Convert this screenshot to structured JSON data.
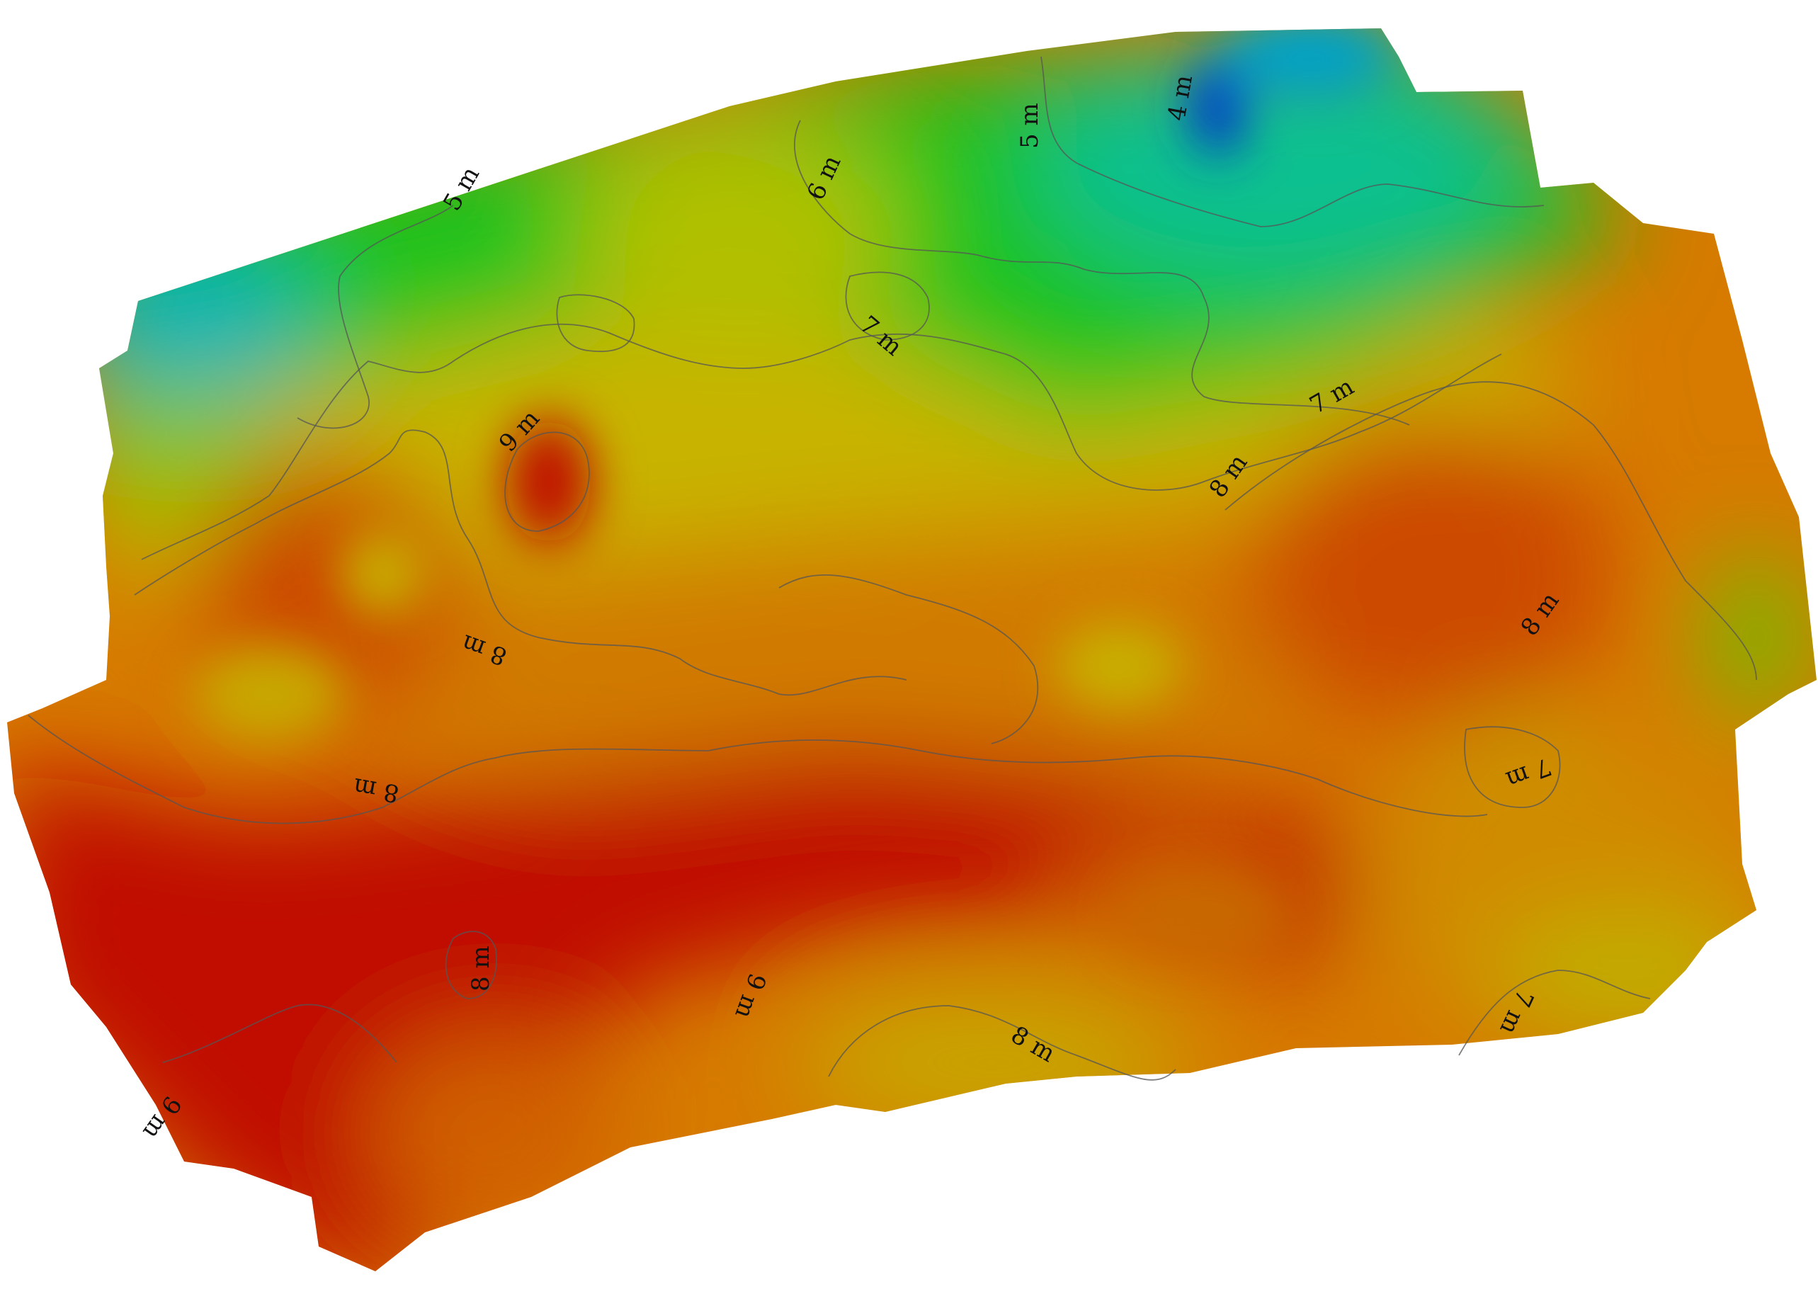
{
  "map": {
    "kind": "elevation-raster",
    "colors": {
      "blue": "#0033cc",
      "cyan": "#00b4b4",
      "green": "#1ec31e",
      "yellow_green": "#a8c800",
      "yellow": "#c8b400",
      "orange": "#d67a00",
      "red_orange": "#cc4a00",
      "red": "#c01000",
      "contour_line": "#555555"
    },
    "contour_labels": [
      "5 m",
      "6 m",
      "5 m",
      "4 m",
      "7 m",
      "7 m",
      "9 m",
      "8 m",
      "8 m",
      "8 m",
      "8 m",
      "7 m",
      "8 m",
      "9 m",
      "8 m",
      "7 m",
      "9 m"
    ]
  }
}
